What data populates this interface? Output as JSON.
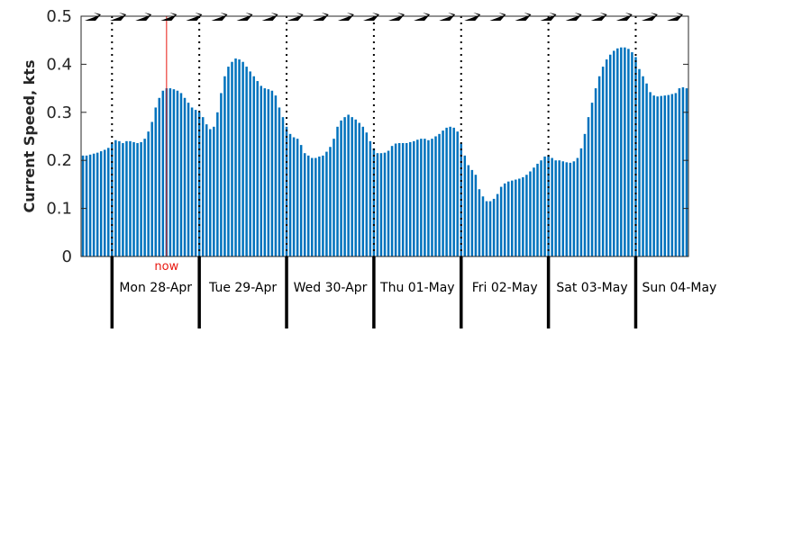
{
  "chart_data": {
    "type": "bar",
    "ylabel": "Current Speed, kts",
    "ylim": [
      0,
      0.5
    ],
    "yticks": [
      "0",
      "0.1",
      "0.2",
      "0.3",
      "0.4",
      "0.5"
    ],
    "bar_color": "#0072bd",
    "now_color": "#e8170f",
    "now_label": "now",
    "now_index": 23,
    "hours_per_day": 24,
    "first_midnight_index": 8,
    "days": [
      "Mon 28-Apr",
      "Tue 29-Apr",
      "Wed 30-Apr",
      "Thu 01-May",
      "Fri 02-May",
      "Sat 03-May",
      "Sun 04-May"
    ],
    "direction_arrows": "all pointing east-northeast along the top edge",
    "values": [
      0.21,
      0.21,
      0.212,
      0.214,
      0.216,
      0.219,
      0.222,
      0.226,
      0.236,
      0.242,
      0.24,
      0.236,
      0.24,
      0.24,
      0.238,
      0.236,
      0.238,
      0.245,
      0.26,
      0.28,
      0.31,
      0.33,
      0.345,
      0.35,
      0.35,
      0.348,
      0.345,
      0.34,
      0.33,
      0.32,
      0.31,
      0.305,
      0.3,
      0.29,
      0.275,
      0.265,
      0.27,
      0.3,
      0.34,
      0.375,
      0.395,
      0.405,
      0.412,
      0.41,
      0.405,
      0.395,
      0.385,
      0.375,
      0.365,
      0.355,
      0.35,
      0.348,
      0.345,
      0.335,
      0.31,
      0.29,
      0.27,
      0.255,
      0.248,
      0.245,
      0.232,
      0.215,
      0.21,
      0.205,
      0.205,
      0.208,
      0.21,
      0.218,
      0.228,
      0.245,
      0.27,
      0.283,
      0.29,
      0.295,
      0.29,
      0.285,
      0.278,
      0.27,
      0.258,
      0.24,
      0.225,
      0.215,
      0.215,
      0.216,
      0.22,
      0.23,
      0.235,
      0.236,
      0.236,
      0.236,
      0.238,
      0.24,
      0.243,
      0.245,
      0.245,
      0.242,
      0.245,
      0.25,
      0.255,
      0.262,
      0.268,
      0.27,
      0.268,
      0.26,
      0.235,
      0.21,
      0.19,
      0.18,
      0.17,
      0.14,
      0.125,
      0.115,
      0.115,
      0.12,
      0.13,
      0.145,
      0.152,
      0.156,
      0.158,
      0.16,
      0.162,
      0.165,
      0.17,
      0.177,
      0.185,
      0.193,
      0.2,
      0.208,
      0.21,
      0.205,
      0.2,
      0.2,
      0.198,
      0.196,
      0.195,
      0.198,
      0.205,
      0.225,
      0.255,
      0.29,
      0.32,
      0.35,
      0.375,
      0.395,
      0.41,
      0.42,
      0.428,
      0.433,
      0.435,
      0.435,
      0.432,
      0.425,
      0.415,
      0.39,
      0.375,
      0.36,
      0.342,
      0.335,
      0.333,
      0.334,
      0.335,
      0.336,
      0.338,
      0.34,
      0.35,
      0.352,
      0.35
    ]
  }
}
